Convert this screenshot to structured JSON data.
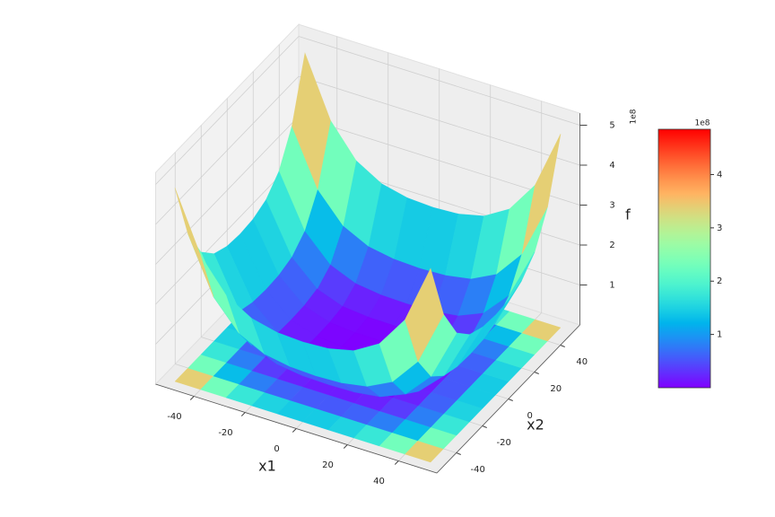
{
  "chart_data": {
    "type": "surface3d",
    "xlabel": "x1",
    "ylabel": "x2",
    "zlabel": "f",
    "x1": [
      -50,
      -40,
      -30,
      -20,
      -10,
      0,
      10,
      20,
      30,
      40,
      50
    ],
    "x2": [
      -50,
      -40,
      -30,
      -20,
      -10,
      0,
      10,
      20,
      30,
      40,
      50
    ],
    "z": [
      [
        4.85,
        3.363,
        2.565,
        2.187,
        2.037,
        2.0,
        2.037,
        2.187,
        2.565,
        3.363,
        4.85
      ],
      [
        3.363,
        1.987,
        1.274,
        0.957,
        0.844,
        0.819,
        0.844,
        0.957,
        1.274,
        1.987,
        3.363
      ],
      [
        2.565,
        1.274,
        0.629,
        0.359,
        0.275,
        0.259,
        0.275,
        0.359,
        0.629,
        1.274,
        2.565
      ],
      [
        2.187,
        0.957,
        0.359,
        0.124,
        0.06,
        0.051,
        0.06,
        0.124,
        0.359,
        0.957,
        2.187
      ],
      [
        2.037,
        0.844,
        0.275,
        0.06,
        0.008,
        0.003,
        0.008,
        0.06,
        0.275,
        0.844,
        2.037
      ],
      [
        2.0,
        0.819,
        0.259,
        0.051,
        0.003,
        0,
        0.003,
        0.051,
        0.259,
        0.819,
        2.0
      ],
      [
        2.037,
        0.844,
        0.275,
        0.06,
        0.008,
        0.003,
        0.008,
        0.06,
        0.275,
        0.844,
        2.037
      ],
      [
        2.187,
        0.957,
        0.359,
        0.124,
        0.06,
        0.051,
        0.06,
        0.124,
        0.359,
        0.957,
        2.187
      ],
      [
        2.565,
        1.274,
        0.629,
        0.359,
        0.275,
        0.259,
        0.275,
        0.359,
        0.629,
        1.274,
        2.565
      ],
      [
        3.363,
        1.987,
        1.274,
        0.957,
        0.844,
        0.819,
        0.844,
        0.957,
        1.274,
        1.987,
        3.363
      ],
      [
        4.85,
        3.363,
        2.565,
        2.187,
        2.037,
        2.0,
        2.037,
        2.187,
        2.565,
        3.363,
        4.85
      ]
    ],
    "xlim": [
      -55,
      55
    ],
    "ylim": [
      -55,
      55
    ],
    "zlim": [
      0,
      5.3
    ],
    "xticks": [
      -40,
      -20,
      0,
      20,
      40
    ],
    "yticks": [
      -40,
      -20,
      0,
      20,
      40
    ],
    "zticks": [
      1,
      2,
      3,
      4,
      5
    ],
    "z_offset_label": "1e8",
    "colormap": "rainbow",
    "grid": true,
    "colorbar": {
      "lim": [
        0,
        4.85
      ],
      "ticks": [
        1,
        2,
        3,
        4
      ],
      "offset_label": "1e8"
    }
  }
}
